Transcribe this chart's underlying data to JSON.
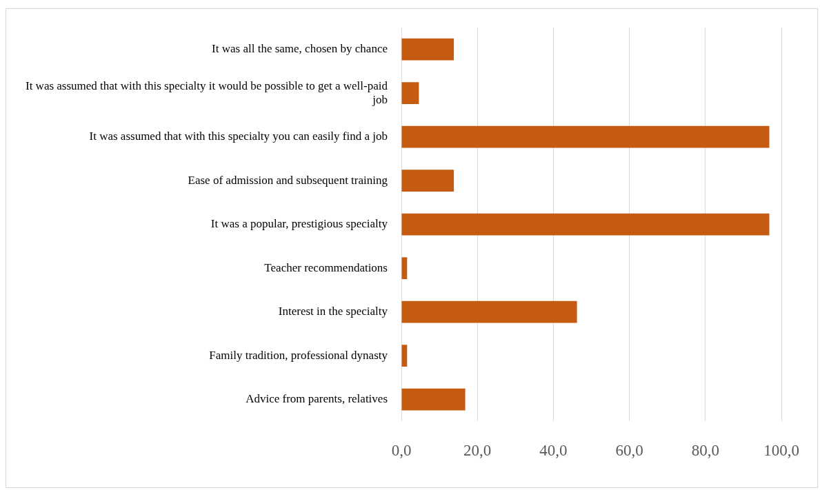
{
  "chart_data": {
    "type": "bar",
    "orientation": "horizontal",
    "categories": [
      "It was all the same, chosen by chance",
      "It was assumed that with this specialty it would be possible to get a well-paid job",
      "It was assumed that with this specialty you can easily find a job",
      "Ease of admission and subsequent training",
      "It was a popular, prestigious specialty",
      "Teacher recommendations",
      "Interest in the specialty",
      "Family tradition, professional dynasty",
      "Advice from parents, relatives"
    ],
    "values": [
      13.8,
      4.6,
      96.8,
      13.8,
      96.8,
      1.5,
      46.2,
      1.5,
      16.8
    ],
    "color": "#c55a11",
    "xlim": [
      0,
      100
    ],
    "xticks": [
      {
        "value": 0,
        "label": "0,0"
      },
      {
        "value": 20,
        "label": "20,0"
      },
      {
        "value": 40,
        "label": "40,0"
      },
      {
        "value": 60,
        "label": "60,0"
      },
      {
        "value": 80,
        "label": "80,0"
      },
      {
        "value": 100,
        "label": "100,0"
      }
    ],
    "grid": "x",
    "legend": false
  }
}
